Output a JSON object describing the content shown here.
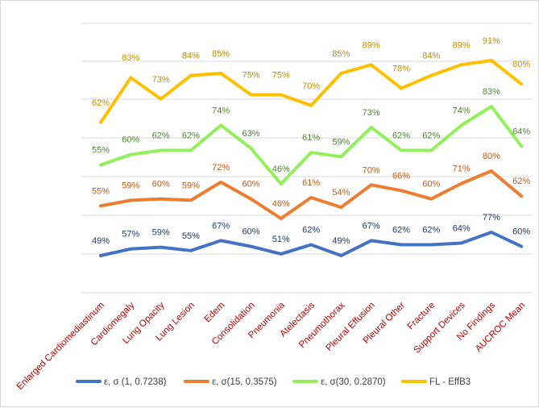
{
  "chart_data": {
    "type": "line",
    "title": "",
    "xlabel": "",
    "ylabel": "",
    "ylim": [
      0,
      1
    ],
    "grid": true,
    "legend_position": "bottom",
    "tick_label_color": "#c00000",
    "label_text_colors": [
      "#1f3864",
      "#c55a11",
      "#548235",
      "#bf8f00"
    ],
    "categories": [
      "Enlarged Cardiomediastinum",
      "Cardiomegaly",
      "Lung Opacity",
      "Lung Lesion",
      "Edem",
      "Consolidation",
      "Pneumonia",
      "Atelectasis",
      "Pneumothorax",
      "Pleural Effusion",
      "Pleural Other",
      "Fracture",
      "Support Devices",
      "No Findings",
      "AUCROC Mean"
    ],
    "series": [
      {
        "name": "ε, σ (1, 0.7238)",
        "color": "#4472c4",
        "values": [
          0.49,
          0.57,
          0.59,
          0.55,
          0.67,
          0.6,
          0.51,
          0.62,
          0.49,
          0.67,
          0.62,
          0.62,
          0.64,
          0.77,
          0.6
        ],
        "labels": [
          "49%",
          "57%",
          "59%",
          "55%",
          "67%",
          "60%",
          "51%",
          "62%",
          "49%",
          "67%",
          "62%",
          "62%",
          "64%",
          "77%",
          "60%"
        ]
      },
      {
        "name": "ε, σ(15, 0.3575)",
        "color": "#ed7d31",
        "values": [
          0.55,
          0.59,
          0.6,
          0.59,
          0.72,
          0.6,
          0.46,
          0.61,
          0.54,
          0.7,
          0.66,
          0.6,
          0.71,
          0.8,
          0.62
        ],
        "labels": [
          "55%",
          "59%",
          "60%",
          "59%",
          "72%",
          "60%",
          "46%",
          "61%",
          "54%",
          "70%",
          "66%",
          "60%",
          "71%",
          "80%",
          "62%"
        ]
      },
      {
        "name": "ε, σ(30, 0.2870)",
        "color": "#92f05a",
        "values": [
          0.55,
          0.6,
          0.62,
          0.62,
          0.74,
          0.63,
          0.46,
          0.61,
          0.59,
          0.73,
          0.62,
          0.62,
          0.74,
          0.83,
          0.64
        ],
        "labels": [
          "55%",
          "60%",
          "62%",
          "62%",
          "74%",
          "63%",
          "46%",
          "61%",
          "59%",
          "73%",
          "62%",
          "62%",
          "74%",
          "83%",
          "64%"
        ]
      },
      {
        "name": "FL - EffB3",
        "color": "#ffc000",
        "values": [
          0.62,
          0.83,
          0.73,
          0.84,
          0.85,
          0.75,
          0.75,
          0.7,
          0.85,
          0.89,
          0.78,
          0.84,
          0.89,
          0.91,
          0.8
        ],
        "labels": [
          "62%",
          "83%",
          "73%",
          "84%",
          "85%",
          "75%",
          "75%",
          "70%",
          "85%",
          "89%",
          "78%",
          "84%",
          "89%",
          "91%",
          "80%"
        ]
      }
    ]
  }
}
